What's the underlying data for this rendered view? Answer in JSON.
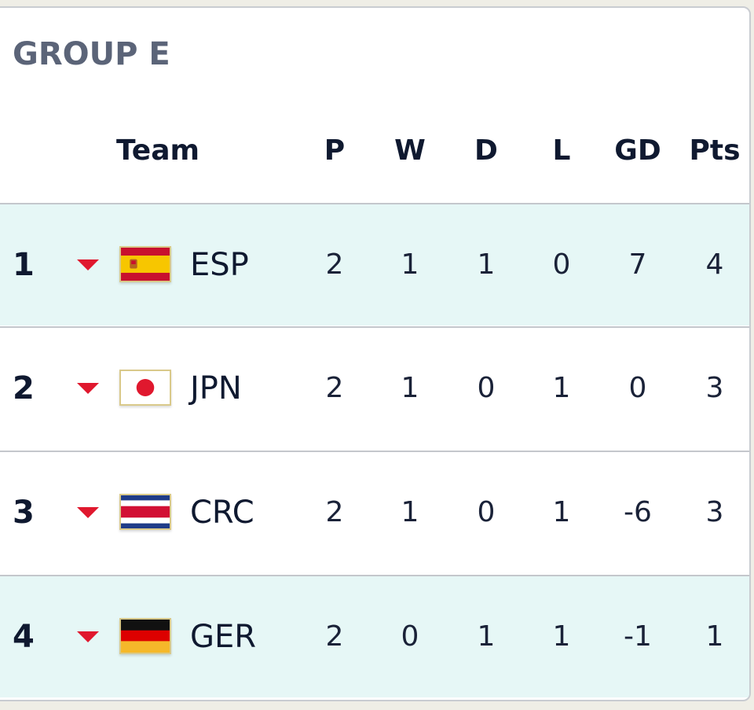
{
  "group": {
    "title": "GROUP E"
  },
  "headers": {
    "team": "Team",
    "p": "P",
    "w": "W",
    "d": "D",
    "l": "L",
    "gd": "GD",
    "pts": "Pts"
  },
  "rows": [
    {
      "rank": "1",
      "team": "ESP",
      "flag": "spain-flag-icon",
      "p": "2",
      "w": "1",
      "d": "1",
      "l": "0",
      "gd": "7",
      "pts": "4"
    },
    {
      "rank": "2",
      "team": "JPN",
      "flag": "japan-flag-icon",
      "p": "2",
      "w": "1",
      "d": "0",
      "l": "1",
      "gd": "0",
      "pts": "3"
    },
    {
      "rank": "3",
      "team": "CRC",
      "flag": "costa-rica-flag-icon",
      "p": "2",
      "w": "1",
      "d": "0",
      "l": "1",
      "gd": "-6",
      "pts": "3"
    },
    {
      "rank": "4",
      "team": "GER",
      "flag": "germany-flag-icon",
      "p": "2",
      "w": "0",
      "d": "1",
      "l": "1",
      "gd": "-1",
      "pts": "1"
    }
  ],
  "colors": {
    "highlight_row": "#e6f7f6",
    "arrow_down": "#e0182e",
    "title_text": "#5b6478",
    "body_text": "#0f1930"
  }
}
